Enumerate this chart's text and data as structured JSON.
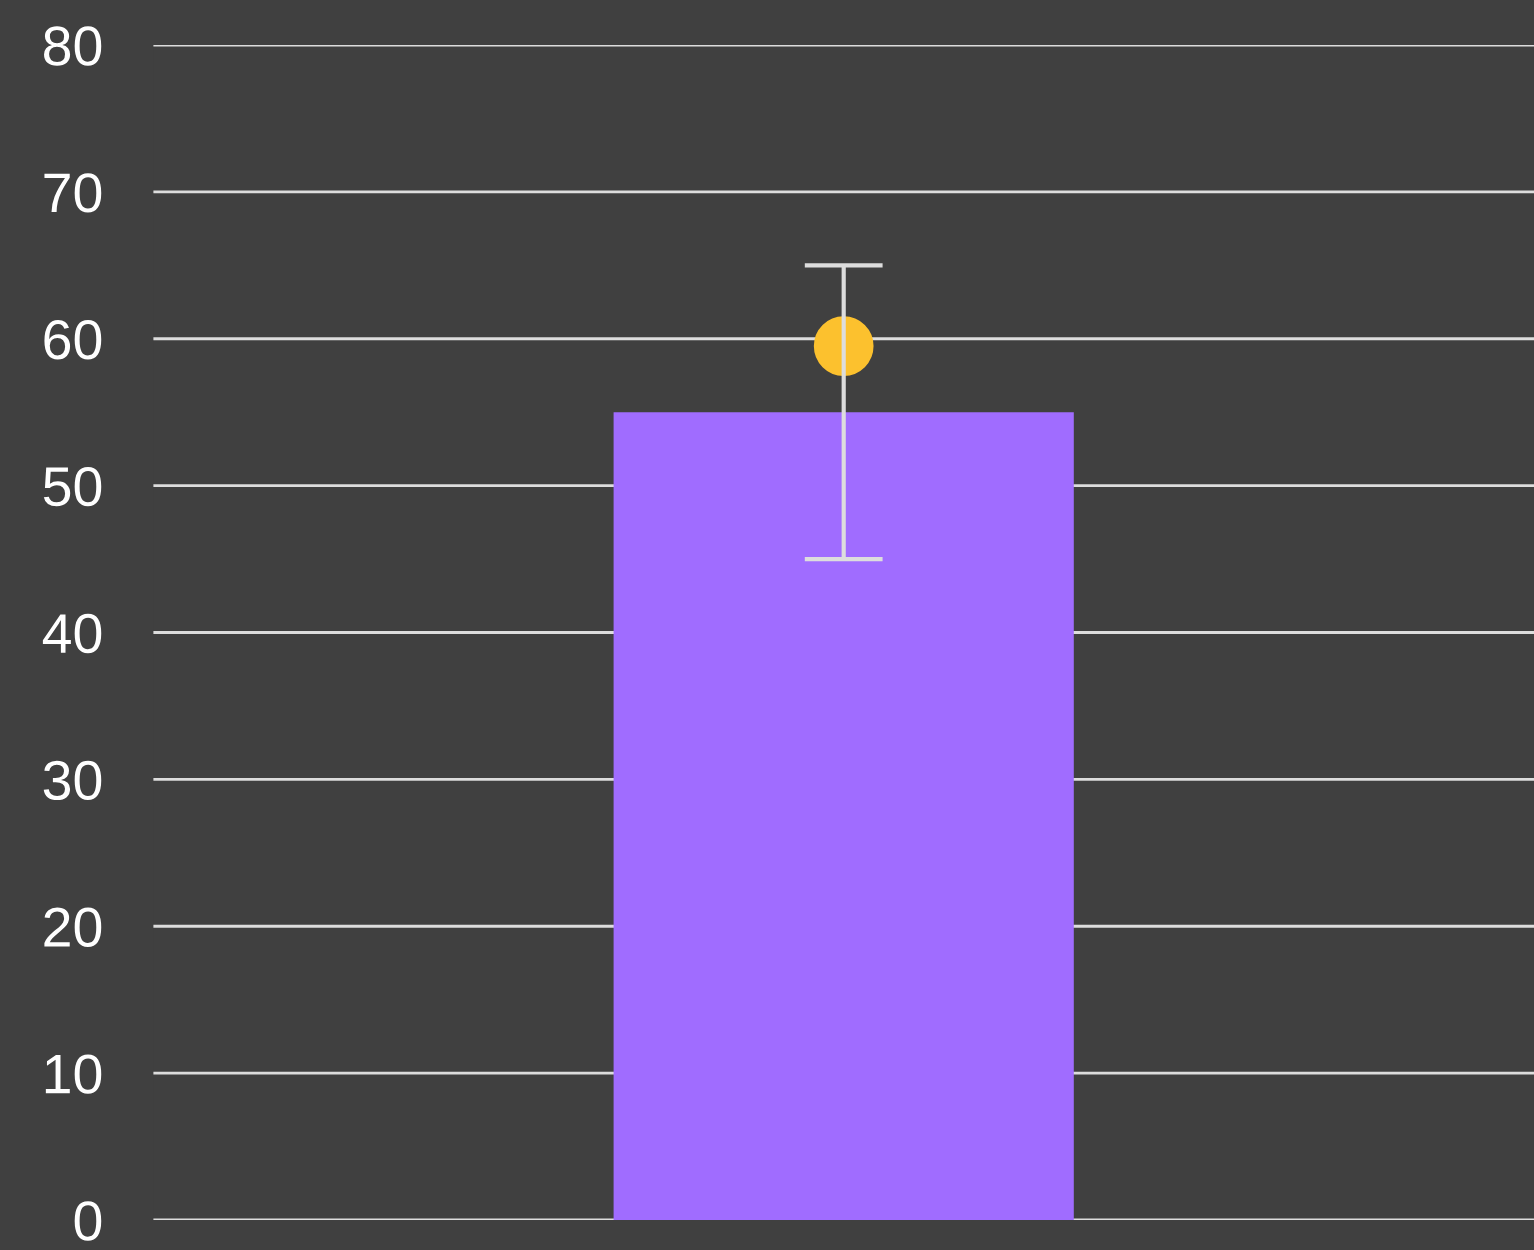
{
  "chart_data": {
    "type": "bar",
    "categories": [
      null
    ],
    "series": [
      {
        "color": "#a06cff",
        "values": [
          55
        ],
        "errors": [
          [
            45,
            65
          ]
        ]
      },
      {
        "type": "scatter",
        "color": "#fcc12e",
        "values": [
          59.5
        ],
        "marker": "circle"
      }
    ],
    "ylim": [
      0,
      80
    ],
    "yticks": [
      0,
      10,
      20,
      30,
      40,
      50,
      60,
      70,
      80
    ],
    "grid": "y",
    "tick_labels": "y"
  }
}
